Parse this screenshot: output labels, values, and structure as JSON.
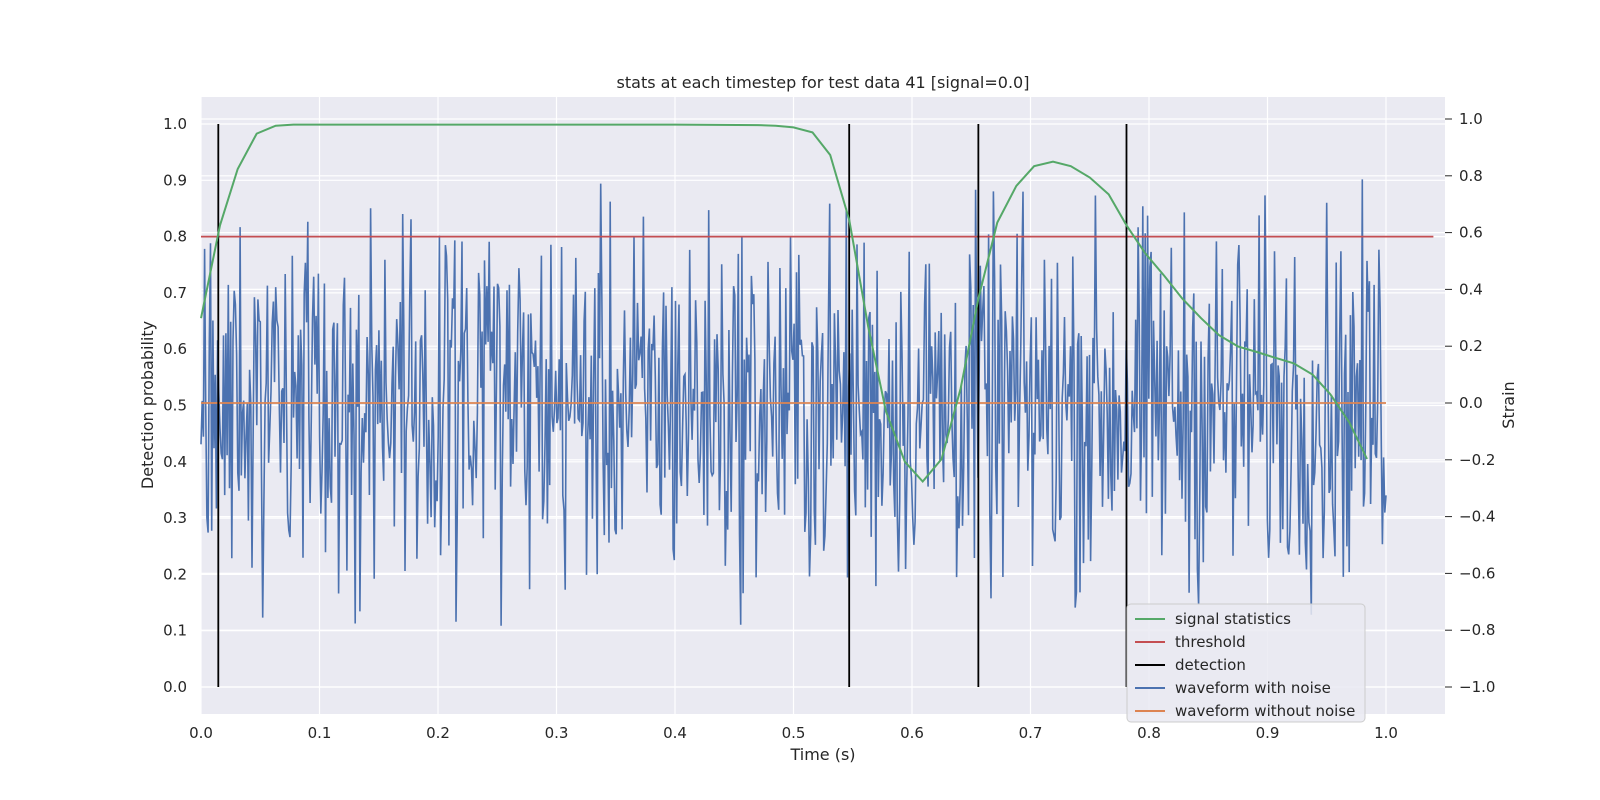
{
  "chart_data": {
    "type": "line",
    "title": "stats at each timestep for test data 41 [signal=0.0]",
    "xlabel": "Time (s)",
    "ylabel": "Detection probability",
    "y2label": "Strain",
    "xlim": [
      0.0,
      1.05
    ],
    "ylim": [
      -0.05,
      1.05
    ],
    "y2lim": [
      -1.09,
      1.09
    ],
    "xticks": [
      "0.0",
      "0.1",
      "0.2",
      "0.3",
      "0.4",
      "0.5",
      "0.6",
      "0.7",
      "0.8",
      "0.9",
      "1.0"
    ],
    "yticks": [
      "0.0",
      "0.1",
      "0.2",
      "0.3",
      "0.4",
      "0.5",
      "0.6",
      "0.7",
      "0.8",
      "0.9",
      "1.0"
    ],
    "y2ticks": [
      "−1.0",
      "−0.8",
      "−0.6",
      "−0.4",
      "−0.2",
      "0.0",
      "0.2",
      "0.4",
      "0.6",
      "0.8",
      "1.0"
    ],
    "grid": true,
    "legend_position": "lower-right",
    "colors": {
      "signal": "#55a868",
      "threshold": "#c44e52",
      "detection": "#000000",
      "noisy": "#4c72b0",
      "clean": "#dd8452",
      "background": "#eaeaf2",
      "grid": "#ffffff"
    },
    "series": [
      {
        "name": "signal statistics",
        "axis": "left",
        "x": [
          0.0,
          0.016,
          0.031,
          0.047,
          0.063,
          0.078,
          0.094,
          0.2,
          0.3,
          0.4,
          0.47,
          0.485,
          0.5,
          0.516,
          0.531,
          0.547,
          0.563,
          0.578,
          0.594,
          0.609,
          0.625,
          0.641,
          0.656,
          0.672,
          0.688,
          0.703,
          0.719,
          0.734,
          0.75,
          0.766,
          0.781,
          0.797,
          0.813,
          0.828,
          0.844,
          0.859,
          0.875,
          0.891,
          0.906,
          0.922,
          0.938,
          0.953,
          0.969,
          0.984
        ],
        "y": [
          0.655,
          0.82,
          0.92,
          0.983,
          0.997,
          0.999,
          0.999,
          0.999,
          0.999,
          0.999,
          0.998,
          0.997,
          0.994,
          0.985,
          0.945,
          0.83,
          0.64,
          0.49,
          0.4,
          0.365,
          0.405,
          0.53,
          0.69,
          0.825,
          0.89,
          0.925,
          0.933,
          0.925,
          0.905,
          0.875,
          0.82,
          0.77,
          0.73,
          0.69,
          0.655,
          0.625,
          0.605,
          0.595,
          0.585,
          0.575,
          0.555,
          0.52,
          0.47,
          0.405
        ]
      },
      {
        "name": "threshold",
        "axis": "left",
        "x": [
          0.0,
          1.04
        ],
        "y": [
          0.8,
          0.8
        ]
      },
      {
        "name": "detection",
        "axis": "left",
        "x": [
          0.0146,
          0.547,
          0.656,
          0.781
        ],
        "y_range": [
          0.0,
          1.0
        ]
      },
      {
        "name": "waveform with noise",
        "axis": "right",
        "sample_count": 1000,
        "x_range": [
          0.0,
          1.0
        ],
        "y_min": -1.0,
        "y_max": 1.0
      },
      {
        "name": "waveform without noise",
        "axis": "right",
        "x": [
          0.0,
          1.0
        ],
        "y": [
          0.0,
          0.0
        ]
      }
    ]
  }
}
